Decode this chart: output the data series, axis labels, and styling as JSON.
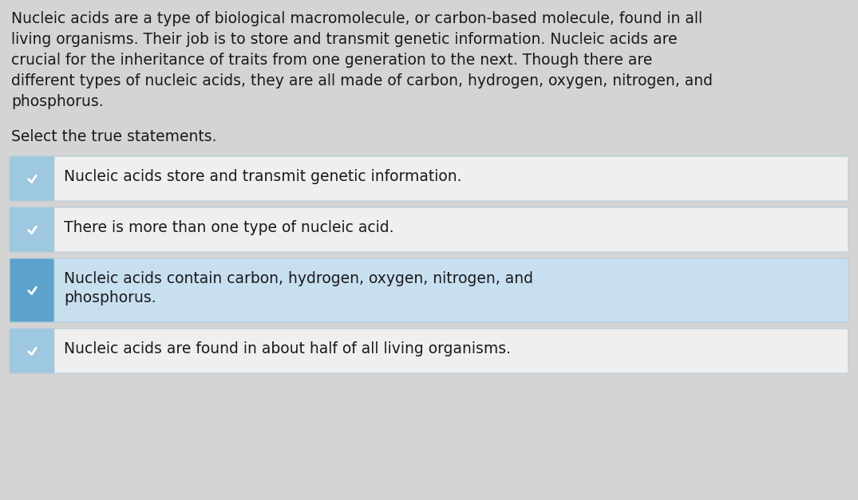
{
  "background_color": "#d4d4d4",
  "passage_lines": [
    "Nucleic acids are a type of biological macromolecule, or carbon-based molecule, found in all",
    "living organisms. Their job is to store and transmit genetic information. Nucleic acids are",
    "crucial for the inheritance of traits from one generation to the next. Though there are",
    "different types of nucleic acids, they are all made of carbon, hydrogen, oxygen, nitrogen, and",
    "phosphorus."
  ],
  "prompt_text": "Select the true statements.",
  "options": [
    {
      "lines": [
        "Nucleic acids store and transmit genetic information."
      ],
      "highlighted": false
    },
    {
      "lines": [
        "There is more than one type of nucleic acid."
      ],
      "highlighted": false
    },
    {
      "lines": [
        "Nucleic acids contain carbon, hydrogen, oxygen, nitrogen, and",
        "phosphorus."
      ],
      "highlighted": true
    },
    {
      "lines": [
        "Nucleic acids are found in about half of all living organisms."
      ],
      "highlighted": false
    }
  ],
  "checkbox_blue_light": "#9ec8e0",
  "checkbox_blue_selected": "#5ba3cc",
  "option_bg_normal": "#efefef",
  "option_bg_highlighted": "#c8dff0",
  "option_border": "#b8ccd8",
  "text_color": "#1a1a1a",
  "check_color": "#ffffff",
  "passage_fontsize": 13.5,
  "prompt_fontsize": 13.5,
  "option_fontsize": 13.5
}
